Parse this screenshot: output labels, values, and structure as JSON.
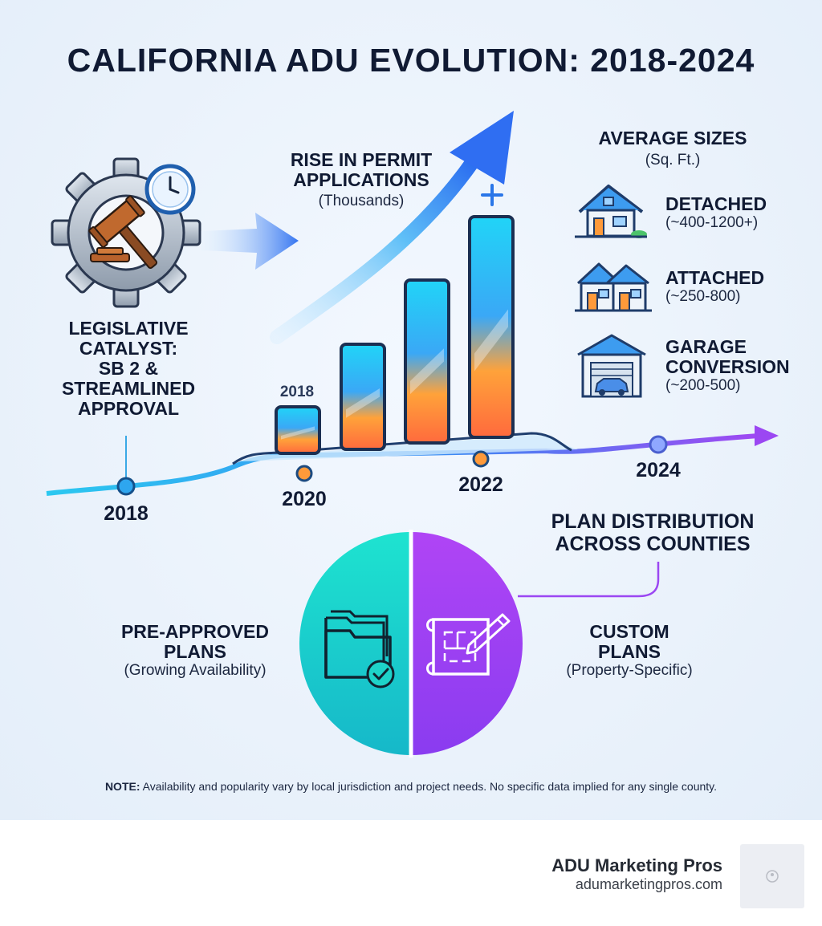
{
  "title": "CALIFORNIA ADU EVOLUTION: 2018-2024",
  "legislative": {
    "line1": "LEGISLATIVE",
    "line2": "CATALYST:",
    "line3": "SB 2 &",
    "line4": "STREAMLINED",
    "line5": "APPROVAL"
  },
  "permits": {
    "line1": "RISE IN PERMIT",
    "line2": "APPLICATIONS",
    "unit": "(Thousands)",
    "bar_label": "2018"
  },
  "sizes": {
    "title": "AVERAGE SIZES",
    "unit": "(Sq. Ft.)",
    "detached": {
      "label": "DETACHED",
      "range": "(~400-1200+)"
    },
    "attached": {
      "label": "ATTACHED",
      "range": "(~250-800)"
    },
    "garage": {
      "line1": "GARAGE",
      "line2": "CONVERSION",
      "range": "(~200-500)"
    }
  },
  "timeline": {
    "y2018": "2018",
    "y2020": "2020",
    "y2022": "2022",
    "y2024": "2024"
  },
  "plans": {
    "title_line1": "PLAN DISTRIBUTION",
    "title_line2": "ACROSS COUNTIES",
    "preapproved": {
      "line1": "PRE-APPROVED",
      "line2": "PLANS",
      "sub": "(Growing Availability)"
    },
    "custom": {
      "line1": "CUSTOM",
      "line2": "PLANS",
      "sub": "(Property-Specific)"
    }
  },
  "note": {
    "label": "NOTE:",
    "text": " Availability and popularity vary by local jurisdiction and project needs. No specific data implied for any single county."
  },
  "footer": {
    "brand": "ADU Marketing Pros",
    "url": "adumarketingpros.com"
  },
  "icons": [
    "gavel-gear-clock-icon",
    "arrow-right-icon",
    "rising-arrow-icon",
    "plus-icon",
    "house-icon",
    "townhouse-icon",
    "garage-icon",
    "folder-check-icon",
    "blueprint-pencil-icon"
  ],
  "colors": {
    "cyan": "#19c7e8",
    "purple": "#9b3df2",
    "orange": "#ff8c3a",
    "navy": "#101a33"
  }
}
